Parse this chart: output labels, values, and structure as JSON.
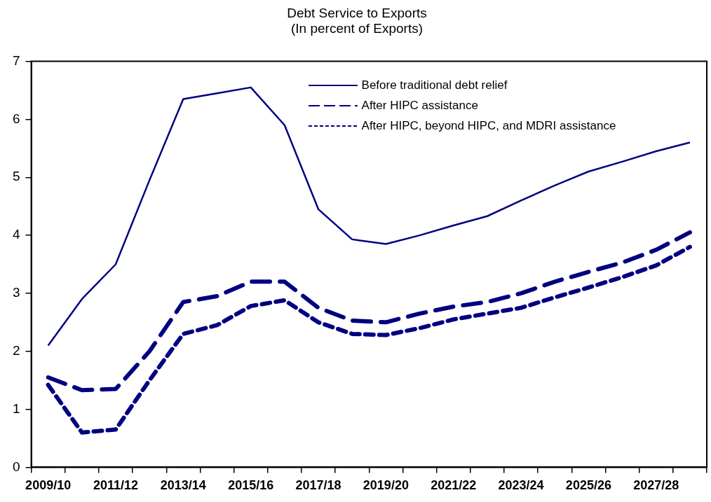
{
  "chart_data": {
    "type": "line",
    "title": "Debt Service to Exports",
    "subtitle": "(In percent of Exports)",
    "categories": [
      "2009/10",
      null,
      "2011/12",
      null,
      "2013/14",
      null,
      "2015/16",
      null,
      "2017/18",
      null,
      "2019/20",
      null,
      "2021/22",
      null,
      "2023/24",
      null,
      "2025/26",
      null,
      "2027/28",
      null
    ],
    "series": [
      {
        "name": "Before traditional debt relief",
        "color": "#000080",
        "line_style": "solid",
        "values": [
          2.1,
          2.9,
          3.5,
          4.95,
          6.35,
          6.45,
          6.55,
          5.9,
          4.45,
          3.93,
          3.85,
          4.0,
          4.17,
          4.33,
          4.6,
          4.86,
          5.1,
          5.27,
          5.45,
          5.6
        ]
      },
      {
        "name": "After HIPC assistance",
        "color": "#000080",
        "line_style": "dashed",
        "values": [
          1.55,
          1.33,
          1.35,
          2.0,
          2.85,
          2.95,
          3.2,
          3.2,
          2.75,
          2.53,
          2.5,
          2.65,
          2.77,
          2.85,
          3.0,
          3.2,
          3.37,
          3.53,
          3.75,
          4.05
        ]
      },
      {
        "name": "After HIPC, beyond HIPC, and MDRI assistance",
        "color": "#000080",
        "line_style": "dotted",
        "values": [
          1.42,
          0.6,
          0.65,
          1.5,
          2.3,
          2.45,
          2.78,
          2.88,
          2.5,
          2.3,
          2.28,
          2.4,
          2.55,
          2.65,
          2.75,
          2.93,
          3.1,
          3.28,
          3.48,
          3.8
        ]
      }
    ],
    "ylim": [
      0,
      7
    ],
    "yticks": [
      0,
      1,
      2,
      3,
      4,
      5,
      6,
      7
    ],
    "grid": false,
    "legend": "top right",
    "marker": "none"
  }
}
